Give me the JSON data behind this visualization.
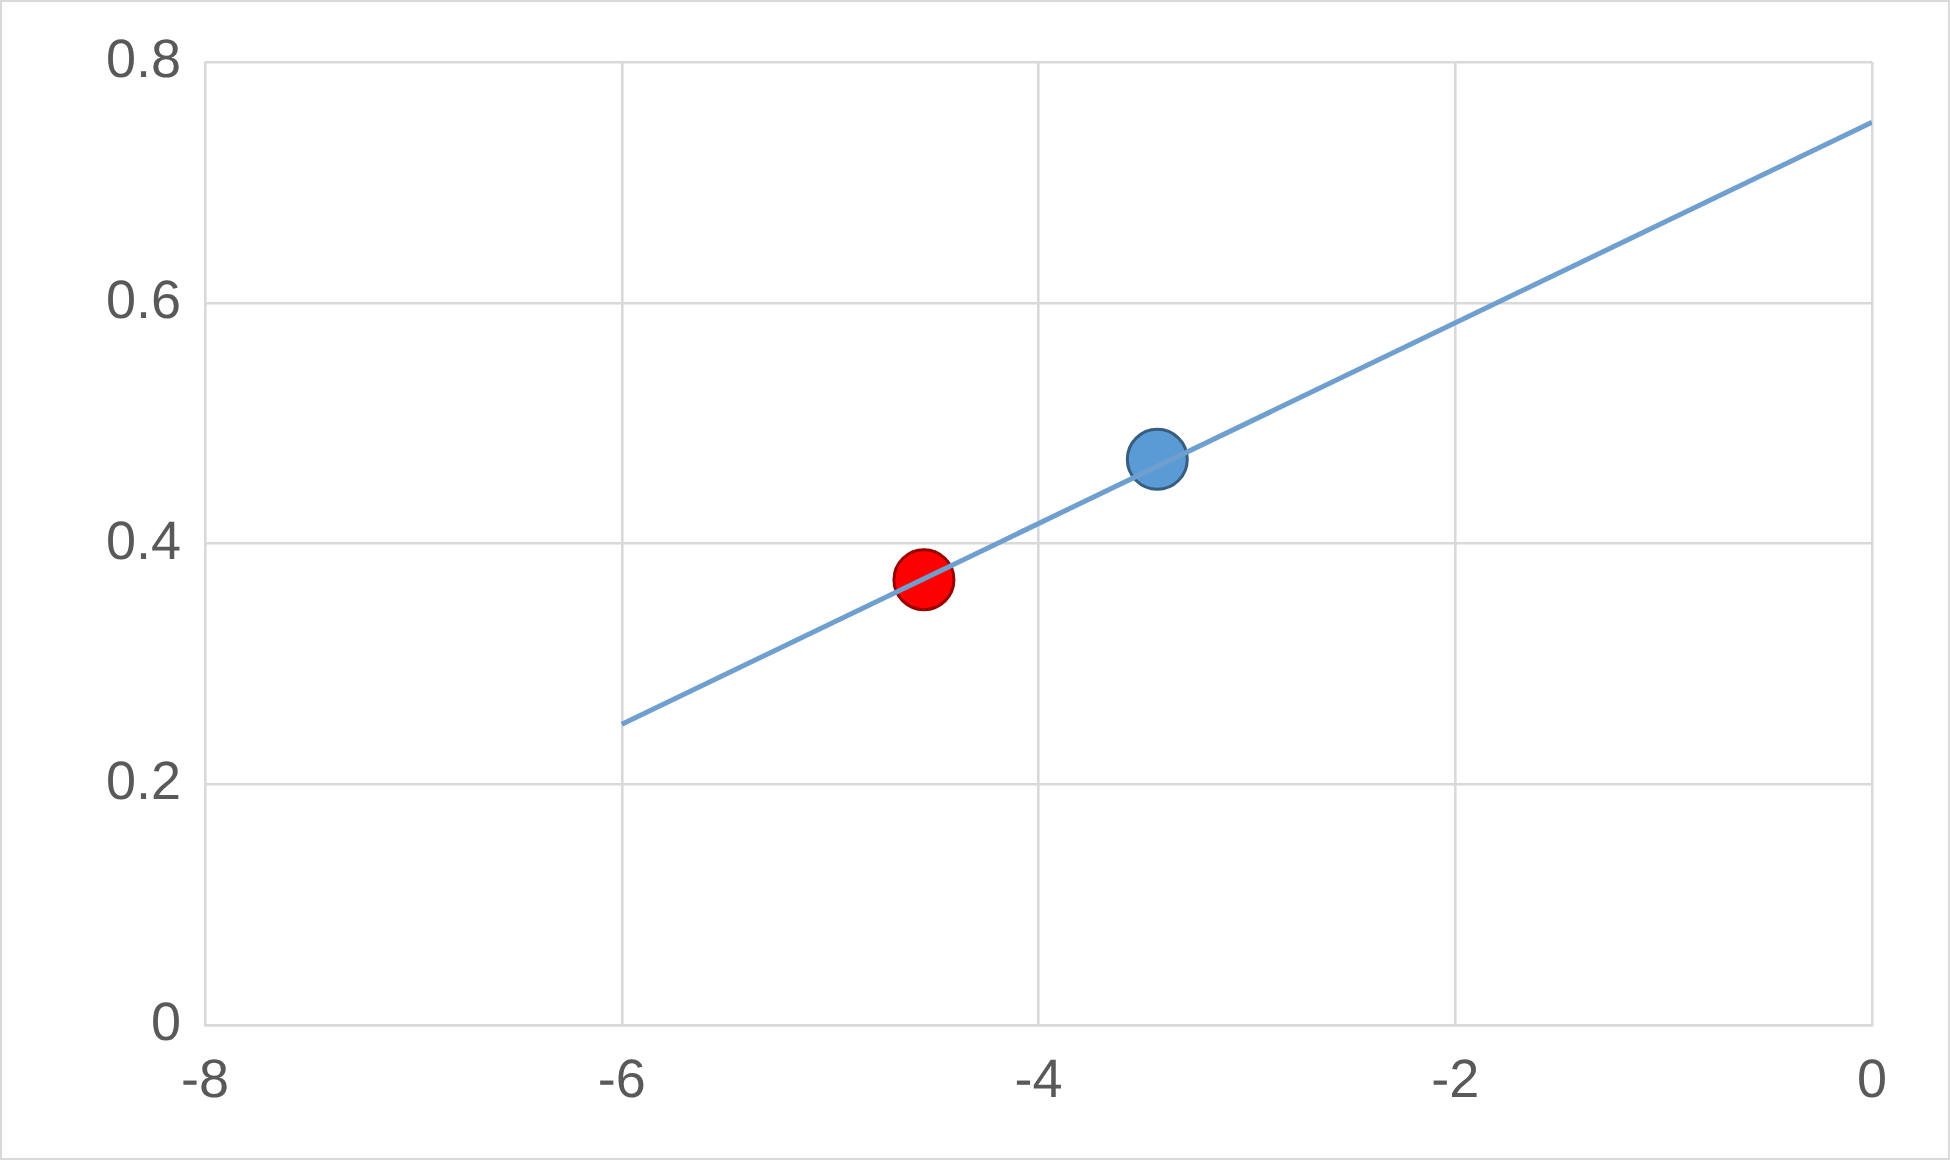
{
  "chart_data": {
    "type": "scatter",
    "xlim": [
      -8,
      0
    ],
    "xticks": [
      -8,
      -6,
      -4,
      -2,
      0
    ],
    "ylim": [
      0,
      0.8
    ],
    "yticks": [
      0,
      0.2,
      0.4,
      0.6,
      0.8
    ],
    "grid": true,
    "legend": false,
    "series": [
      {
        "type": "line",
        "color": "#6f9fcf",
        "x": [
          -6,
          0
        ],
        "values": [
          0.25,
          0.75
        ],
        "marker": "none",
        "line_style": "solid"
      },
      {
        "type": "scatter",
        "color": "#ff0000",
        "x": [
          -4.55
        ],
        "values": [
          0.37
        ],
        "marker": "circle"
      },
      {
        "type": "scatter",
        "color": "#5b9bd5",
        "x": [
          -3.43
        ],
        "values": [
          0.47
        ],
        "marker": "circle"
      }
    ]
  }
}
